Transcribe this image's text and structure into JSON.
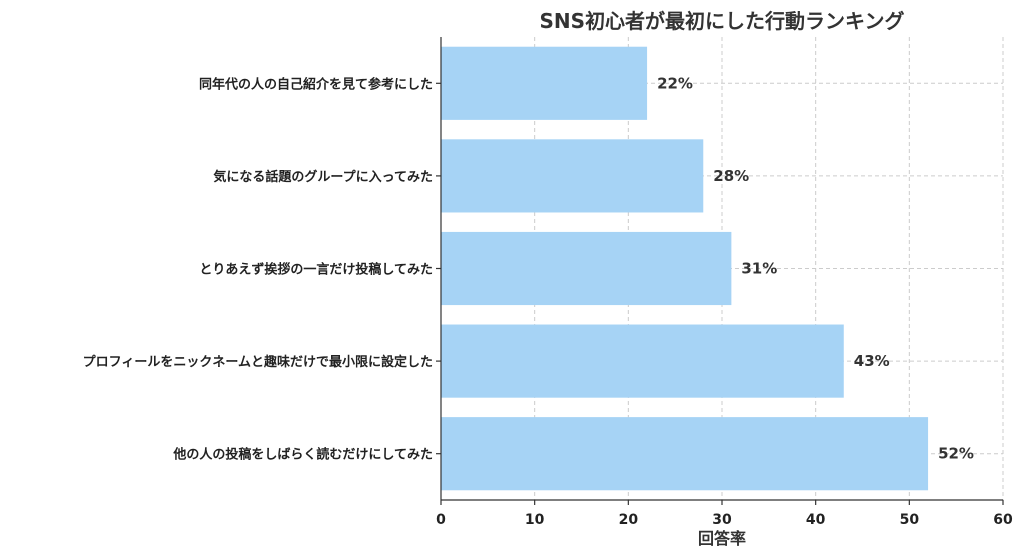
{
  "chart_data": {
    "type": "bar",
    "orientation": "horizontal",
    "title": "SNS初心者が最初にした行動ランキング",
    "xlabel": "回答率",
    "ylabel": "",
    "xlim": [
      0,
      60
    ],
    "xticks": [
      0,
      10,
      20,
      30,
      40,
      50,
      60
    ],
    "categories": [
      "同年代の人の自己紹介を見て参考にした",
      "気になる話題のグループに入ってみた",
      "とりあえず挨拶の一言だけ投稿してみた",
      "プロフィールをニックネームと趣味だけで最小限に設定した",
      "他の人の投稿をしばらく読むだけにしてみた"
    ],
    "values": [
      22,
      28,
      31,
      43,
      52
    ],
    "value_labels": [
      "22%",
      "28%",
      "31%",
      "43%",
      "52%"
    ],
    "bar_color": "#a6d3f5",
    "grid": true,
    "legend": "none"
  }
}
